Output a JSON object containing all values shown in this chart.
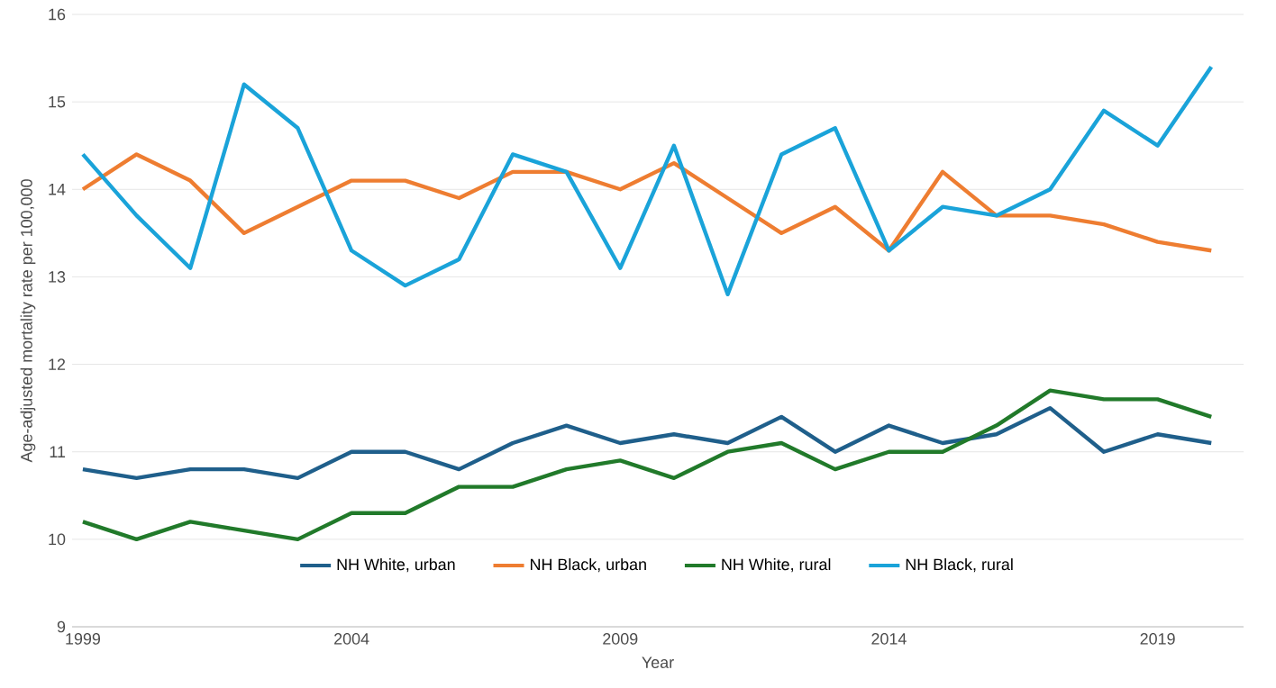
{
  "chart_data": {
    "type": "line",
    "xlabel": "Year",
    "ylabel": "Age-adjusted mortality rate per 100,000",
    "x": [
      1999,
      2000,
      2001,
      2002,
      2003,
      2004,
      2005,
      2006,
      2007,
      2008,
      2009,
      2010,
      2011,
      2012,
      2013,
      2014,
      2015,
      2016,
      2017,
      2018,
      2019,
      2020
    ],
    "xlim": [
      1998.8,
      2020.6
    ],
    "xticks": [
      1999,
      2004,
      2009,
      2014,
      2019
    ],
    "ylim": [
      9,
      16
    ],
    "yticks": [
      9,
      10,
      11,
      12,
      13,
      14,
      15,
      16
    ],
    "grid": "y",
    "legend": "bottom",
    "marker": "none",
    "line_style": "solid",
    "series": [
      {
        "name": "NH White, urban",
        "color": "#1f5f8b",
        "values": [
          10.8,
          10.7,
          10.8,
          10.8,
          10.7,
          11.0,
          11.0,
          10.8,
          11.1,
          11.3,
          11.1,
          11.2,
          11.1,
          11.4,
          11.0,
          11.3,
          11.1,
          11.2,
          11.5,
          11.0,
          11.2,
          11.1
        ]
      },
      {
        "name": "NH Black, urban",
        "color": "#ee7d31",
        "values": [
          14.0,
          14.4,
          14.1,
          13.5,
          13.8,
          14.1,
          14.1,
          13.9,
          14.2,
          14.2,
          14.0,
          14.3,
          13.9,
          13.5,
          13.8,
          13.3,
          14.2,
          13.7,
          13.7,
          13.6,
          13.4,
          13.3
        ]
      },
      {
        "name": "NH White, rural",
        "color": "#217a2a",
        "values": [
          10.2,
          10.0,
          10.2,
          10.1,
          10.0,
          10.3,
          10.3,
          10.6,
          10.6,
          10.8,
          10.9,
          10.7,
          11.0,
          11.1,
          10.8,
          11.0,
          11.0,
          11.3,
          11.7,
          11.6,
          11.6,
          11.4
        ]
      },
      {
        "name": "NH Black, rural",
        "color": "#1aa3d9",
        "values": [
          14.4,
          13.7,
          13.1,
          15.2,
          14.7,
          13.3,
          12.9,
          13.2,
          14.4,
          14.2,
          13.1,
          14.5,
          12.8,
          14.4,
          14.7,
          13.3,
          13.8,
          13.7,
          14.0,
          14.9,
          14.5,
          15.4
        ]
      }
    ]
  }
}
